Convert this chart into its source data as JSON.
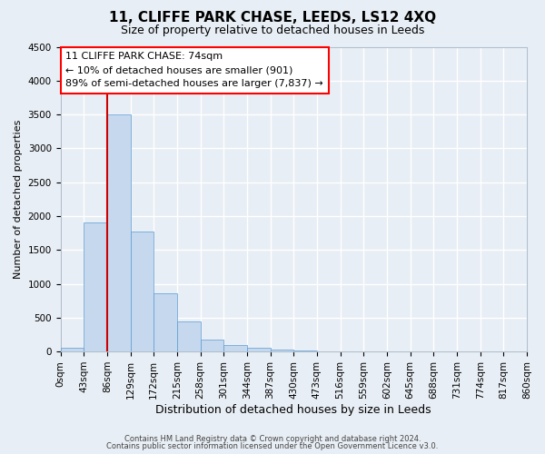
{
  "title": "11, CLIFFE PARK CHASE, LEEDS, LS12 4XQ",
  "subtitle": "Size of property relative to detached houses in Leeds",
  "xlabel": "Distribution of detached houses by size in Leeds",
  "ylabel": "Number of detached properties",
  "bar_labels": [
    "0sqm",
    "43sqm",
    "86sqm",
    "129sqm",
    "172sqm",
    "215sqm",
    "258sqm",
    "301sqm",
    "344sqm",
    "387sqm",
    "430sqm",
    "473sqm",
    "516sqm",
    "559sqm",
    "602sqm",
    "645sqm",
    "688sqm",
    "731sqm",
    "774sqm",
    "817sqm",
    "860sqm"
  ],
  "bar_values": [
    50,
    1900,
    3500,
    1770,
    860,
    450,
    175,
    90,
    55,
    30,
    10,
    5,
    3,
    2,
    1,
    1,
    0,
    0,
    0,
    0,
    0
  ],
  "bar_color": "#c5d8ed",
  "bar_edge_color": "#5b9bd5",
  "background_color": "#e8eef5",
  "grid_color": "#ffffff",
  "ylim": [
    0,
    4500
  ],
  "yticks": [
    0,
    500,
    1000,
    1500,
    2000,
    2500,
    3000,
    3500,
    4000,
    4500
  ],
  "property_name": "11 CLIFFE PARK CHASE: 74sqm",
  "annotation_line1": "← 10% of detached houses are smaller (901)",
  "annotation_line2": "89% of semi-detached houses are larger (7,837) →",
  "vline_x": 86,
  "vline_color": "#cc0000",
  "footer_line1": "Contains HM Land Registry data © Crown copyright and database right 2024.",
  "footer_line2": "Contains public sector information licensed under the Open Government Licence v3.0.",
  "title_fontsize": 11,
  "subtitle_fontsize": 9,
  "xlabel_fontsize": 9,
  "ylabel_fontsize": 8,
  "tick_fontsize": 7.5,
  "annotation_fontsize": 8,
  "footer_fontsize": 6
}
